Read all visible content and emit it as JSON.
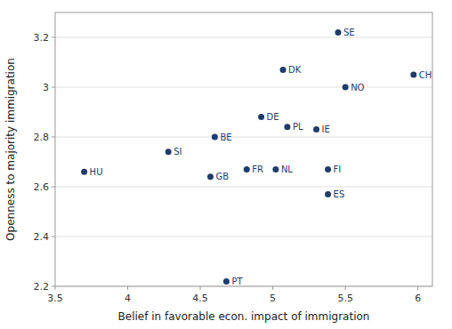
{
  "chart_data": {
    "type": "scatter",
    "xlabel": "Belief in favorable econ. impact of immigration",
    "ylabel": "Openness to majority immigration",
    "labels": [
      "SE",
      "CH",
      "DK",
      "NO",
      "DE",
      "PL",
      "IE",
      "BE",
      "SI",
      "HU",
      "FR",
      "NL",
      "FI",
      "GB",
      "ES",
      "PT"
    ],
    "x": [
      5.45,
      5.97,
      5.07,
      5.5,
      4.92,
      5.1,
      5.3,
      4.6,
      4.28,
      3.7,
      4.82,
      5.02,
      5.38,
      4.57,
      5.38,
      4.68
    ],
    "values": [
      3.22,
      3.05,
      3.07,
      3.0,
      2.88,
      2.84,
      2.83,
      2.8,
      2.74,
      2.66,
      2.67,
      2.67,
      2.67,
      2.64,
      2.57,
      2.22
    ],
    "color": "#1f3d6b",
    "xlim": [
      3.5,
      6.1
    ],
    "ylim": [
      2.2,
      3.3
    ],
    "xticks": [
      3.5,
      4.0,
      4.5,
      5.0,
      5.5,
      6.0
    ],
    "yticks": [
      2.2,
      2.4,
      2.6,
      2.8,
      3.0,
      3.2
    ],
    "grid": true
  }
}
